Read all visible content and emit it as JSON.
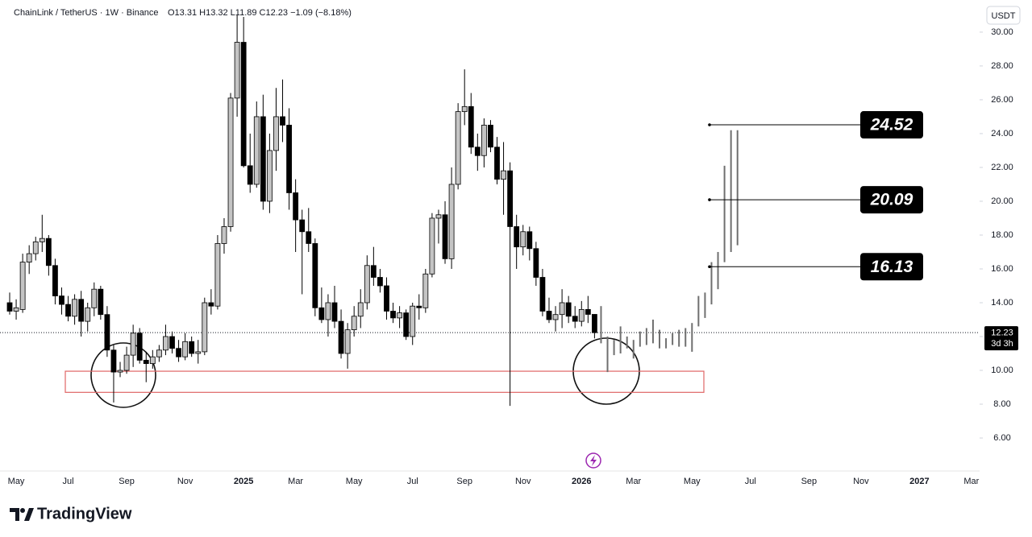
{
  "chart_data": {
    "type": "candlestick",
    "title": "ChainLink / TetherUS · 1W · Binance",
    "ohlc_legend": "O13.31 H13.32 L11.89 C12.23 −1.09 (−8.18%)",
    "currency": "USDT",
    "brand": "TradingView",
    "countdown": "3d 3h",
    "last_price": 12.23,
    "up_color": "#c4c4c4",
    "down_color": "#000000",
    "projection_color": "#6f6f6f",
    "zone_color": "#e06666",
    "ylim": [
      4.05,
      31.9
    ],
    "yticks": [
      {
        "value": 6,
        "label": "6.00"
      },
      {
        "value": 8,
        "label": "8.00"
      },
      {
        "value": 10,
        "label": "10.00"
      },
      {
        "value": 12,
        "label": "12.00"
      },
      {
        "value": 14,
        "label": "14.00"
      },
      {
        "value": 16,
        "label": "16.00"
      },
      {
        "value": 18,
        "label": "18.00"
      },
      {
        "value": 20,
        "label": "20.00"
      },
      {
        "value": 22,
        "label": "22.00"
      },
      {
        "value": 24,
        "label": "24.00"
      },
      {
        "value": 26,
        "label": "26.00"
      },
      {
        "value": 28,
        "label": "28.00"
      },
      {
        "value": 30,
        "label": "30.00"
      }
    ],
    "categories": [
      null,
      "May",
      null,
      null,
      null,
      null,
      null,
      null,
      null,
      "Jul",
      null,
      null,
      null,
      null,
      null,
      null,
      null,
      null,
      "Sep",
      null,
      null,
      null,
      null,
      null,
      null,
      null,
      null,
      "Nov",
      null,
      null,
      null,
      null,
      null,
      null,
      null,
      null,
      "2025",
      null,
      null,
      null,
      null,
      null,
      null,
      null,
      "Mar",
      null,
      null,
      null,
      null,
      null,
      null,
      null,
      null,
      "May",
      null,
      null,
      null,
      null,
      null,
      null,
      null,
      null,
      "Jul",
      null,
      null,
      null,
      null,
      null,
      null,
      null,
      "Sep",
      null,
      null,
      null,
      null,
      null,
      null,
      null,
      null,
      "Nov",
      null,
      null,
      null,
      null,
      null,
      null,
      null,
      null,
      "2026",
      null,
      null,
      null,
      null,
      null,
      null,
      null,
      "Mar",
      null,
      null,
      null,
      null,
      null,
      null,
      null,
      null,
      "May",
      null,
      null,
      null,
      null,
      null,
      null,
      null,
      null,
      "Jul",
      null,
      null,
      null,
      null,
      null,
      null,
      null,
      null,
      "Sep",
      null,
      null,
      null,
      null,
      null,
      null,
      null,
      "Nov",
      null,
      null,
      null,
      null,
      null,
      null,
      null,
      null,
      "2027",
      null,
      null,
      null,
      null,
      null,
      null,
      null,
      "Mar"
    ],
    "open": [
      14.0,
      13.5,
      13.6,
      16.4,
      16.9,
      17.6,
      17.8,
      16.2,
      14.4,
      13.9,
      13.2,
      14.2,
      12.9,
      13.7,
      14.8,
      13.3,
      11.2,
      9.9,
      10.0,
      10.9,
      12.2,
      10.6,
      10.4,
      10.8,
      11.2,
      12.0,
      11.3,
      10.8,
      11.7,
      11.0,
      11.1,
      14.0,
      13.8,
      17.5,
      18.5,
      26.1,
      29.4,
      22.1,
      21.0,
      25.0,
      20.0,
      23.0,
      25.0,
      24.5,
      20.5,
      18.9,
      18.2,
      17.5,
      13.7,
      13.0,
      14.0,
      12.9,
      11.0,
      12.4,
      13.2,
      14.0,
      16.2,
      15.5,
      15.0,
      13.5,
      13.1,
      13.4,
      12.0,
      13.8,
      13.7,
      15.7,
      19.0,
      19.2,
      16.6,
      21.0,
      25.3,
      25.6,
      23.2,
      22.7,
      24.5,
      23.2,
      21.3,
      21.8,
      18.5,
      17.3,
      18.2,
      17.2,
      15.5,
      13.5,
      13.0,
      13.3,
      14.0,
      13.2,
      12.9,
      13.6,
      13.31,
      null,
      null,
      null,
      null,
      null,
      null,
      null,
      null,
      null,
      null,
      null,
      null,
      null,
      null,
      null,
      null,
      null,
      null,
      null,
      null,
      null,
      null,
      null,
      null,
      null,
      null,
      null,
      null,
      null,
      null,
      null,
      null,
      null,
      null,
      null,
      null,
      null,
      null,
      null,
      null,
      null,
      null,
      null,
      null,
      null,
      null,
      null,
      null,
      null,
      null,
      null,
      null,
      null,
      null,
      null,
      null,
      null,
      null
    ],
    "high": [
      14.6,
      14.2,
      16.9,
      17.4,
      17.9,
      19.2,
      18.0,
      16.6,
      14.9,
      14.4,
      14.5,
      14.7,
      14.0,
      15.2,
      15.0,
      13.8,
      11.5,
      10.5,
      11.4,
      12.7,
      12.5,
      11.1,
      11.2,
      11.5,
      12.7,
      12.3,
      11.8,
      12.2,
      12.0,
      11.8,
      14.3,
      14.8,
      18.0,
      19.0,
      26.4,
      31.0,
      30.9,
      24.0,
      25.9,
      26.3,
      24.0,
      26.7,
      27.2,
      25.5,
      21.3,
      19.5,
      19.6,
      17.8,
      14.9,
      14.5,
      15.0,
      13.6,
      12.8,
      13.8,
      14.8,
      16.8,
      17.3,
      16.0,
      15.5,
      14.0,
      13.8,
      13.6,
      14.0,
      14.5,
      16.0,
      19.3,
      19.5,
      20.0,
      22.0,
      25.8,
      27.8,
      26.4,
      24.0,
      24.9,
      24.8,
      23.8,
      23.5,
      22.3,
      19.2,
      18.6,
      18.5,
      17.6,
      16.0,
      14.3,
      13.8,
      14.8,
      14.4,
      13.8,
      14.1,
      14.4,
      13.32,
      null,
      null,
      null,
      null,
      null,
      null,
      null,
      null,
      null,
      null,
      null,
      null,
      null,
      null,
      null,
      null,
      null,
      null,
      null,
      null,
      null,
      null,
      null,
      null,
      null,
      null,
      null,
      null,
      null,
      null,
      null,
      null,
      null,
      null,
      null,
      null,
      null,
      null,
      null,
      null,
      null,
      null,
      null,
      null,
      null,
      null,
      null,
      null,
      null,
      null,
      null,
      null,
      null,
      null,
      null,
      null,
      null,
      null
    ],
    "low": [
      13.3,
      13.0,
      13.4,
      15.7,
      16.5,
      17.0,
      15.6,
      13.9,
      13.3,
      12.9,
      12.7,
      12.0,
      12.3,
      13.2,
      13.0,
      10.8,
      8.1,
      9.6,
      9.8,
      10.2,
      10.4,
      9.3,
      10.1,
      10.5,
      10.9,
      11.0,
      10.5,
      10.6,
      10.8,
      10.4,
      10.9,
      13.3,
      13.6,
      16.9,
      18.2,
      25.0,
      22.0,
      20.5,
      20.8,
      19.5,
      19.3,
      21.8,
      23.5,
      19.5,
      17.0,
      14.5,
      17.0,
      13.2,
      12.8,
      12.0,
      12.5,
      10.7,
      10.1,
      12.0,
      12.5,
      13.6,
      15.0,
      14.6,
      13.0,
      12.8,
      12.5,
      11.8,
      11.5,
      13.0,
      13.4,
      15.5,
      17.5,
      16.3,
      16.0,
      20.7,
      24.5,
      22.8,
      21.8,
      22.0,
      22.9,
      21.0,
      19.2,
      7.9,
      16.0,
      16.8,
      16.5,
      15.0,
      13.2,
      12.8,
      12.3,
      12.5,
      12.8,
      12.5,
      12.6,
      12.8,
      11.89,
      null,
      null,
      null,
      null,
      null,
      null,
      null,
      null,
      null,
      null,
      null,
      null,
      null,
      null,
      null,
      null,
      null,
      null,
      null,
      null,
      null,
      null,
      null,
      null,
      null,
      null,
      null,
      null,
      null,
      null,
      null,
      null,
      null,
      null,
      null,
      null,
      null,
      null,
      null,
      null,
      null,
      null,
      null,
      null,
      null,
      null,
      null,
      null,
      null,
      null,
      null,
      null,
      null,
      null,
      null,
      null,
      null,
      null
    ],
    "close": [
      13.5,
      13.7,
      16.4,
      16.9,
      17.6,
      17.8,
      16.2,
      14.4,
      13.9,
      13.2,
      14.2,
      12.9,
      13.7,
      14.8,
      13.3,
      11.2,
      9.9,
      10.0,
      10.9,
      12.2,
      10.6,
      10.4,
      10.8,
      11.2,
      12.0,
      11.3,
      10.8,
      11.7,
      11.0,
      11.1,
      14.0,
      13.8,
      17.5,
      18.5,
      26.1,
      29.4,
      22.1,
      21.0,
      25.0,
      20.0,
      23.0,
      25.0,
      24.5,
      20.5,
      18.9,
      18.2,
      17.5,
      13.7,
      13.0,
      14.0,
      12.9,
      11.0,
      12.4,
      13.2,
      14.0,
      16.2,
      15.5,
      15.0,
      13.5,
      13.1,
      13.4,
      12.0,
      13.8,
      13.7,
      15.7,
      19.0,
      19.2,
      16.6,
      21.0,
      25.3,
      25.6,
      23.2,
      22.7,
      24.5,
      23.2,
      21.3,
      21.8,
      18.5,
      17.3,
      18.2,
      17.2,
      15.5,
      13.5,
      13.0,
      13.3,
      14.0,
      13.2,
      12.9,
      13.6,
      13.31,
      12.23,
      null,
      null,
      null,
      null,
      null,
      null,
      null,
      null,
      null,
      null,
      null,
      null,
      null,
      null,
      null,
      null,
      null,
      null,
      null,
      null,
      null,
      null,
      null,
      null,
      null,
      null,
      null,
      null,
      null,
      null,
      null,
      null,
      null,
      null,
      null,
      null,
      null,
      null,
      null,
      null,
      null,
      null,
      null,
      null,
      null,
      null,
      null,
      null,
      null,
      null,
      null,
      null,
      null,
      null,
      null,
      null,
      null,
      null
    ],
    "projection_high": [
      null,
      null,
      null,
      null,
      null,
      null,
      null,
      null,
      null,
      null,
      null,
      null,
      null,
      null,
      null,
      null,
      null,
      null,
      null,
      null,
      null,
      null,
      null,
      null,
      null,
      null,
      null,
      null,
      null,
      null,
      null,
      null,
      null,
      null,
      null,
      null,
      null,
      null,
      null,
      null,
      null,
      null,
      null,
      null,
      null,
      null,
      null,
      null,
      null,
      null,
      null,
      null,
      null,
      null,
      null,
      null,
      null,
      null,
      null,
      null,
      null,
      null,
      null,
      null,
      null,
      null,
      null,
      null,
      null,
      null,
      null,
      null,
      null,
      null,
      null,
      null,
      null,
      null,
      null,
      null,
      null,
      null,
      null,
      null,
      null,
      null,
      null,
      null,
      null,
      null,
      null,
      13.8,
      12.0,
      11.8,
      12.6,
      12.0,
      11.8,
      12.3,
      12.5,
      13.0,
      12.4,
      11.9,
      12.2,
      12.4,
      12.5,
      12.8,
      14.4,
      14.6,
      16.4,
      17.0,
      22.1,
      24.2,
      24.2,
      null,
      null,
      null,
      null,
      null,
      null,
      null,
      null,
      null,
      null,
      null,
      null,
      null,
      null,
      null,
      null,
      null,
      null,
      null,
      null,
      null,
      null,
      null,
      null,
      null,
      null,
      null,
      null,
      null,
      null,
      null,
      null,
      null,
      null,
      null,
      null
    ],
    "projection_low": [
      null,
      null,
      null,
      null,
      null,
      null,
      null,
      null,
      null,
      null,
      null,
      null,
      null,
      null,
      null,
      null,
      null,
      null,
      null,
      null,
      null,
      null,
      null,
      null,
      null,
      null,
      null,
      null,
      null,
      null,
      null,
      null,
      null,
      null,
      null,
      null,
      null,
      null,
      null,
      null,
      null,
      null,
      null,
      null,
      null,
      null,
      null,
      null,
      null,
      null,
      null,
      null,
      null,
      null,
      null,
      null,
      null,
      null,
      null,
      null,
      null,
      null,
      null,
      null,
      null,
      null,
      null,
      null,
      null,
      null,
      null,
      null,
      null,
      null,
      null,
      null,
      null,
      null,
      null,
      null,
      null,
      null,
      null,
      null,
      null,
      null,
      null,
      null,
      null,
      null,
      null,
      11.6,
      9.9,
      10.9,
      11.0,
      11.3,
      10.7,
      11.4,
      11.5,
      11.6,
      11.3,
      11.3,
      11.5,
      11.4,
      11.4,
      11.1,
      12.6,
      13.1,
      13.9,
      14.8,
      16.4,
      17.0,
      17.4,
      null,
      null,
      null,
      null,
      null,
      null,
      null,
      null,
      null,
      null,
      null,
      null,
      null,
      null,
      null,
      null,
      null,
      null,
      null,
      null,
      null,
      null,
      null,
      null,
      null,
      null,
      null,
      null,
      null,
      null,
      null,
      null,
      null,
      null,
      null,
      null
    ],
    "levels": [
      24.52,
      20.09,
      16.13
    ],
    "zone": [
      8.7,
      9.95
    ]
  }
}
